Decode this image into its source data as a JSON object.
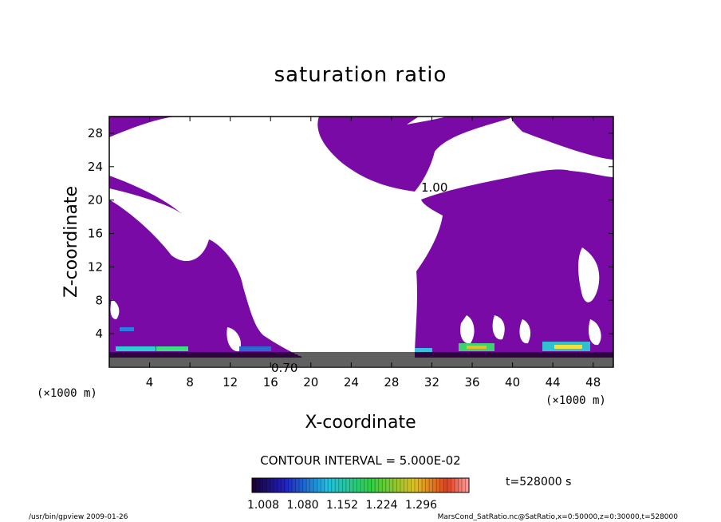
{
  "chart_data": {
    "type": "heatmap",
    "title": "saturation ratio",
    "xlabel": "X-coordinate",
    "ylabel": "Z-coordinate",
    "x_unit": "(×1000 m)",
    "y_unit": "(×1000 m)",
    "xlim": [
      0,
      50
    ],
    "ylim": [
      0,
      30
    ],
    "x_ticks": [
      4,
      8,
      12,
      16,
      20,
      24,
      28,
      32,
      36,
      40,
      44,
      48
    ],
    "y_ticks": [
      4,
      8,
      12,
      16,
      20,
      24,
      28
    ],
    "contour_interval_text": "CONTOUR INTERVAL = 5.000E-02",
    "contour_labels": [
      "1.00",
      "0.70"
    ],
    "colorbar_ticks": [
      "1.008",
      "1.080",
      "1.152",
      "1.224",
      "1.296"
    ],
    "fill_color": "#7a0aa6",
    "time_text": "t=528000 s",
    "footer_left": "/usr/bin/gpview  2009-01-26",
    "footer_right": "MarsCond_SatRatio.nc@SatRatio,x=0:50000,z=0:30000,t=528000"
  }
}
